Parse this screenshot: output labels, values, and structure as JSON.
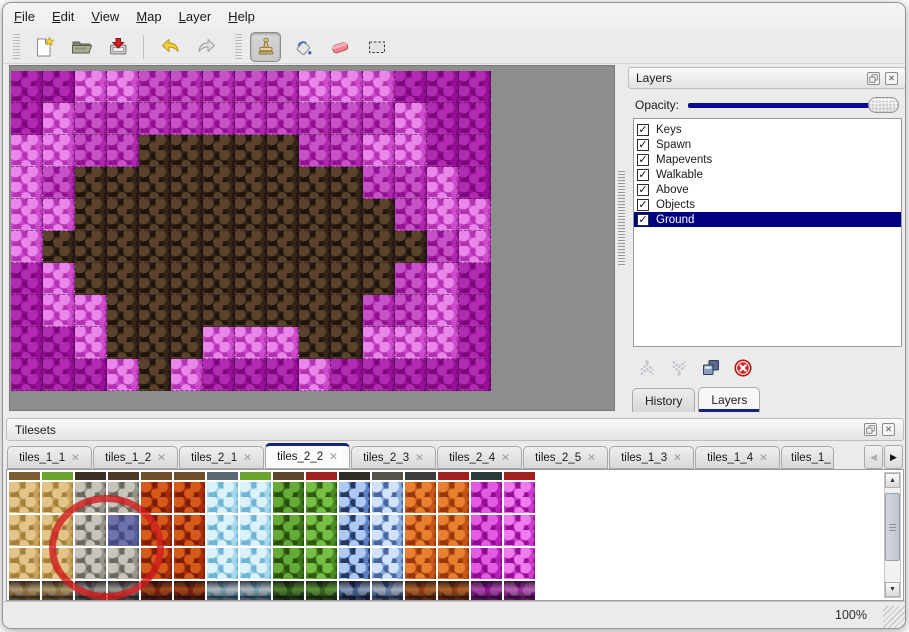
{
  "menu": {
    "items": [
      {
        "label": "File",
        "underline": 0
      },
      {
        "label": "Edit",
        "underline": 0
      },
      {
        "label": "View",
        "underline": 0
      },
      {
        "label": "Map",
        "underline": 0
      },
      {
        "label": "Layer",
        "underline": 0
      },
      {
        "label": "Help",
        "underline": 0
      }
    ]
  },
  "toolbar": {
    "tools": [
      "new-file",
      "open",
      "save",
      "undo",
      "redo",
      "stamp",
      "fill",
      "eraser",
      "select"
    ],
    "active_tool": "stamp"
  },
  "map": {
    "tile_size": 32,
    "columns": 15,
    "row_count": 10,
    "rows": [
      "DDPPMMMMMPPPDDD",
      "DPMMMMMMMMMMPDD",
      "PPMMBBBBBMMPPDD",
      "PMBBBBBBBBBMMPD",
      "PPBBBBBBBBBBMPP",
      "PBBBBBBBBBBBBMP",
      "DPBBBBBBBBBBMPD",
      "DPPBBBBBBBBMMPD",
      "DDPBBBPPPBBPPPD",
      "DDDPBPDDDPDDDDD"
    ],
    "legend": {
      "D": {
        "name": "dark-magenta-wall",
        "base": "#990e99",
        "hi": "#b02bb0",
        "lo": "#7d077d"
      },
      "P": {
        "name": "light-pink-wall",
        "base": "#cb4bcb",
        "hi": "#ea85ea",
        "lo": "#b232b2"
      },
      "M": {
        "name": "magenta-pillar",
        "base": "#ad28ad",
        "hi": "#c751c7",
        "lo": "#8f118f"
      },
      "B": {
        "name": "brown-floor",
        "base": "#34241a",
        "hi": "#5b422b",
        "lo": "#1f140c"
      }
    }
  },
  "layers_panel": {
    "title": "Layers",
    "opacity_label": "Opacity:",
    "opacity_value": "100",
    "layers": [
      {
        "name": "Keys",
        "checked": true,
        "selected": false
      },
      {
        "name": "Spawn",
        "checked": true,
        "selected": false
      },
      {
        "name": "Mapevents",
        "checked": true,
        "selected": false
      },
      {
        "name": "Walkable",
        "checked": true,
        "selected": false
      },
      {
        "name": "Above",
        "checked": true,
        "selected": false
      },
      {
        "name": "Objects",
        "checked": true,
        "selected": false
      },
      {
        "name": "Ground",
        "checked": true,
        "selected": true
      }
    ],
    "buttons": [
      "raise-layer",
      "lower-layer",
      "duplicate-layer",
      "delete-layer"
    ],
    "tabs": [
      {
        "label": "History",
        "active": false
      },
      {
        "label": "Layers",
        "active": true
      }
    ]
  },
  "tilesets_panel": {
    "title": "Tilesets",
    "tabs": [
      {
        "label": "tiles_1_1",
        "active": false,
        "truncated": false
      },
      {
        "label": "tiles_1_2",
        "active": false,
        "truncated": false
      },
      {
        "label": "tiles_2_1",
        "active": false,
        "truncated": false
      },
      {
        "label": "tiles_2_2",
        "active": true,
        "truncated": false
      },
      {
        "label": "tiles_2_3",
        "active": false,
        "truncated": false
      },
      {
        "label": "tiles_2_4",
        "active": false,
        "truncated": false
      },
      {
        "label": "tiles_2_5",
        "active": false,
        "truncated": false
      },
      {
        "label": "tiles_1_3",
        "active": false,
        "truncated": false
      },
      {
        "label": "tiles_1_4",
        "active": false,
        "truncated": false
      },
      {
        "label": "tiles_1_",
        "active": false,
        "truncated": true
      }
    ],
    "selection": {
      "col": 3,
      "row": 1
    },
    "grid": {
      "full_rows": 3,
      "columns": [
        "sand",
        "sand",
        "stone",
        "stone",
        "lava",
        "lava",
        "ice",
        "ice",
        "vine_dark",
        "vine",
        "crystal",
        "crystal_light",
        "orange",
        "orange",
        "magenta",
        "magenta_light"
      ],
      "types": {
        "sand": {
          "base": "#c9a35e",
          "hi": "#e4c589",
          "lo": "#a57f3c"
        },
        "stone": {
          "base": "#98948c",
          "hi": "#c8c4bc",
          "lo": "#6c6860"
        },
        "lava": {
          "base": "#a82c0c",
          "hi": "#d65a1a",
          "lo": "#7c1d06"
        },
        "ice": {
          "base": "#a6d8ec",
          "hi": "#dcf2fa",
          "lo": "#6fb4d4"
        },
        "vine_dark": {
          "base": "#3c741c",
          "hi": "#66aa38",
          "lo": "#27500f"
        },
        "vine": {
          "base": "#4a8c22",
          "hi": "#76be44",
          "lo": "#2f5c12"
        },
        "crystal": {
          "base": "#5c80c4",
          "hi": "#aecaf2",
          "lo": "#263760"
        },
        "crystal_light": {
          "base": "#88aade",
          "hi": "#d1e3fa",
          "lo": "#4a66a0"
        },
        "orange": {
          "base": "#c85418",
          "hi": "#e8802f",
          "lo": "#96380c"
        },
        "magenta": {
          "base": "#ba1eba",
          "hi": "#e35ae3",
          "lo": "#8c0e8c"
        },
        "magenta_light": {
          "base": "#c93ec9",
          "hi": "#ef7bef",
          "lo": "#970f97"
        }
      },
      "header_strip_colors": [
        "#7a5c33",
        "#6aa42e",
        "#3c3024",
        "#4c3a28",
        "#6e502c",
        "#6e502c",
        "#5c6874",
        "#6aa42e",
        "#5e462c",
        "#a32020",
        "#302b25",
        "#56514b",
        "#3c3c3c",
        "#a32020",
        "#283c3c",
        "#a32020"
      ]
    }
  },
  "status_bar": {
    "zoom": "100%"
  },
  "glyphs": {
    "check": "✓",
    "close": "✕",
    "tab_prev": "◀",
    "tab_next": "▶",
    "scroll_up": "▲",
    "scroll_down": "▼"
  },
  "colors": {
    "accent_navy": "#000080",
    "selection_overlay": "rgba(38,48,158,0.55)",
    "annotation_red": "#cf1d1d"
  }
}
